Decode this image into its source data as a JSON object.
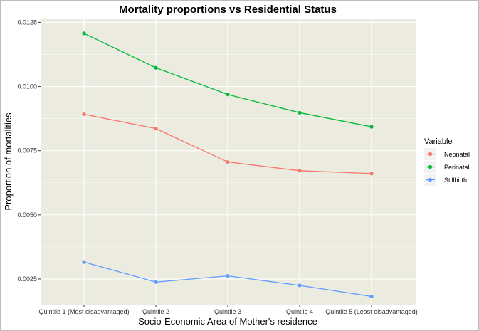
{
  "chart_data": {
    "type": "line",
    "title": "Mortality proportions vs Residential Status",
    "xlabel": "Socio-Economic Area of Mother's residence",
    "ylabel": "Proportion of mortalities",
    "categories": [
      "Quintile 1 (Most disadvantaged)",
      "Quintile 2",
      "Quintile 3",
      "Quintile 4",
      "Quintile 5 (Least disadvantaged)"
    ],
    "ylim": [
      0.0015,
      0.01265
    ],
    "yticks": [
      0.0025,
      0.005,
      0.0075,
      0.01,
      0.0125
    ],
    "ytick_labels": [
      "0.0025",
      "0.0050",
      "0.0075",
      "0.0100",
      "0.0125"
    ],
    "grid": true,
    "legend": {
      "title": "Variable",
      "position": "right"
    },
    "series": [
      {
        "name": "Neonatal",
        "color": "#F8766D",
        "values": [
          0.00892,
          0.00836,
          0.00706,
          0.00672,
          0.00661
        ]
      },
      {
        "name": "Perinatal",
        "color": "#00BA38",
        "values": [
          0.01207,
          0.01073,
          0.00969,
          0.00898,
          0.00843
        ]
      },
      {
        "name": "Stillbirth",
        "color": "#619CFF",
        "values": [
          0.00316,
          0.00238,
          0.00262,
          0.00225,
          0.00182
        ]
      }
    ],
    "panel_background": "#EBEBDF",
    "grid_color": "#ffffff"
  }
}
